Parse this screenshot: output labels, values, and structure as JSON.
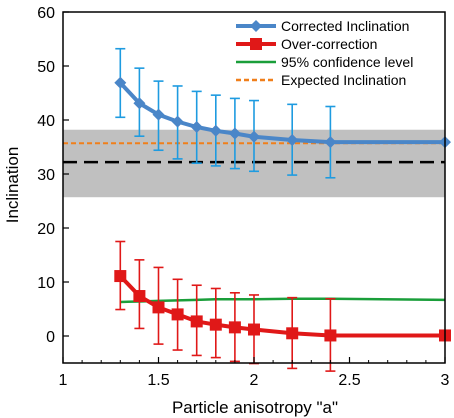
{
  "chart_data": {
    "type": "line",
    "title": "",
    "xlabel": "Particle anisotropy \"a\"",
    "ylabel": "Inclination",
    "xlim": [
      1,
      3
    ],
    "ylim": [
      -5,
      60
    ],
    "xticks": [
      1,
      1.5,
      2,
      2.5,
      3
    ],
    "xtick_labels": [
      "1",
      "1.5",
      "2",
      "2.5",
      "3"
    ],
    "yticks": [
      0,
      10,
      20,
      30,
      40,
      50,
      60
    ],
    "ytick_labels": [
      "0",
      "10",
      "20",
      "30",
      "40",
      "50",
      "60"
    ],
    "grid": false,
    "legend_position": "top-right",
    "shaded_band": {
      "y_low": 25.7,
      "y_high": 38.2,
      "color": "#c0c0c0"
    },
    "reference_lines": [
      {
        "y": 32.2,
        "color": "#000000",
        "style": "dashed"
      }
    ],
    "series": [
      {
        "name": "Corrected Inclination",
        "color": "#4a86c8",
        "marker": "diamond",
        "x": [
          1.3,
          1.4,
          1.5,
          1.6,
          1.7,
          1.8,
          1.9,
          2.0,
          2.2,
          2.4,
          3.0
        ],
        "y": [
          46.9,
          43.1,
          41.0,
          39.7,
          38.7,
          38.0,
          37.5,
          36.9,
          36.3,
          35.9,
          35.9
        ],
        "err_low": [
          40.5,
          37.0,
          34.4,
          32.8,
          32.0,
          31.5,
          31.0,
          30.5,
          29.8,
          29.3,
          null
        ],
        "err_high": [
          53.2,
          49.6,
          47.2,
          46.3,
          45.3,
          44.6,
          44.0,
          43.6,
          42.9,
          42.5,
          null
        ],
        "errorbar_color": "#1e9be0"
      },
      {
        "name": "Over-correction",
        "color": "#e01818",
        "marker": "square",
        "x": [
          1.3,
          1.4,
          1.5,
          1.6,
          1.7,
          1.8,
          1.9,
          2.0,
          2.2,
          2.4,
          3.0
        ],
        "y": [
          11.1,
          7.4,
          5.3,
          4.0,
          2.7,
          2.1,
          1.6,
          1.2,
          0.5,
          0.1,
          0.1
        ],
        "err_low": [
          4.9,
          1.4,
          -1.5,
          -2.6,
          -3.6,
          -4.0,
          -4.7,
          -5.1,
          -6.0,
          -6.5,
          null
        ],
        "err_high": [
          17.5,
          14.1,
          12.7,
          10.5,
          9.4,
          8.8,
          8.0,
          7.6,
          7.1,
          6.9,
          null
        ],
        "errorbar_color": "#e01818"
      },
      {
        "name": "95% confidence level",
        "color": "#1a9e3a",
        "marker": "none",
        "x": [
          1.3,
          1.4,
          1.5,
          1.6,
          1.7,
          1.8,
          1.9,
          2.0,
          2.2,
          2.4,
          3.0
        ],
        "y": [
          6.3,
          6.4,
          6.5,
          6.6,
          6.7,
          6.8,
          6.8,
          6.8,
          6.9,
          6.9,
          6.7
        ]
      },
      {
        "name": "Expected Inclination",
        "color": "#f07f1a",
        "marker": "none",
        "style": "dashed",
        "x": [
          1.0,
          3.0
        ],
        "y": [
          35.7,
          35.7
        ]
      }
    ]
  }
}
